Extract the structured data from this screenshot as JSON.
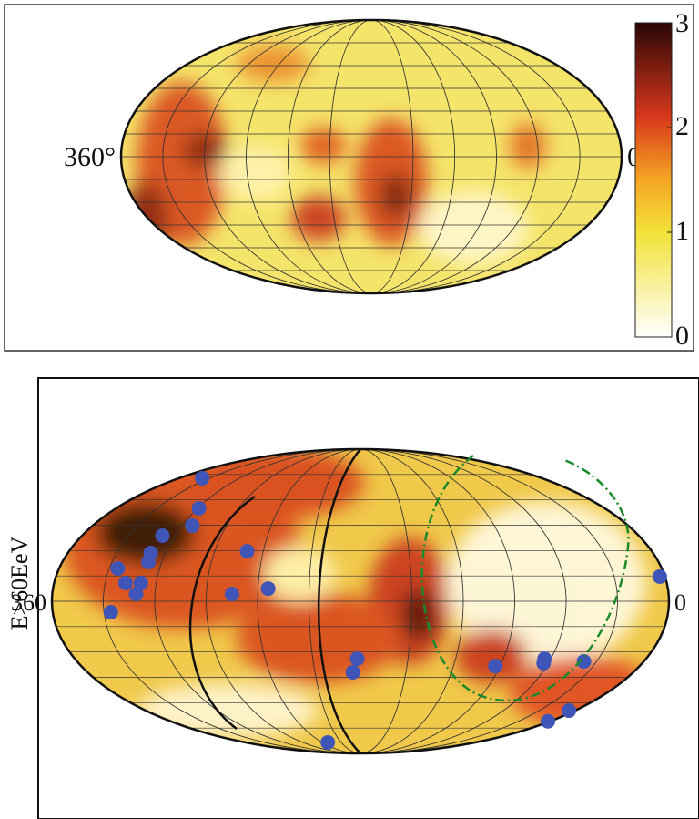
{
  "chart_data": [
    {
      "type": "heatmap",
      "xlim": [
        360,
        0
      ],
      "xticks": [
        {
          "value": 360,
          "label": "360°"
        },
        {
          "value": 0,
          "label": "0°"
        }
      ],
      "colorbar": {
        "lim": [
          0,
          3
        ],
        "ticks": [
          0,
          1,
          2,
          3
        ]
      }
    },
    {
      "type": "scatter",
      "ylabel": "E>60EeV",
      "xlim": [
        360,
        0
      ],
      "ylim": [
        -90,
        90
      ],
      "xticks": [
        {
          "value": 360,
          "label": "360"
        },
        {
          "value": 0,
          "label": "0"
        }
      ],
      "color": "#3f55b8",
      "x": [
        337,
        299,
        293,
        308,
        309,
        308,
        325,
        318,
        309,
        311,
        250,
        3,
        234,
        255,
        326,
        182,
        185,
        93,
        64,
        63,
        38,
        5,
        2,
        231
      ],
      "y": [
        72.8,
        55.0,
        44.7,
        38.8,
        28.6,
        23.2,
        19.4,
        10.8,
        10.8,
        4.3,
        29.6,
        14.6,
        7.5,
        4.3,
        -6.5,
        -34.0,
        -42.0,
        -38.3,
        -34.0,
        -36.6,
        -35.6,
        -64.7,
        -71,
        -83.5
      ]
    }
  ]
}
